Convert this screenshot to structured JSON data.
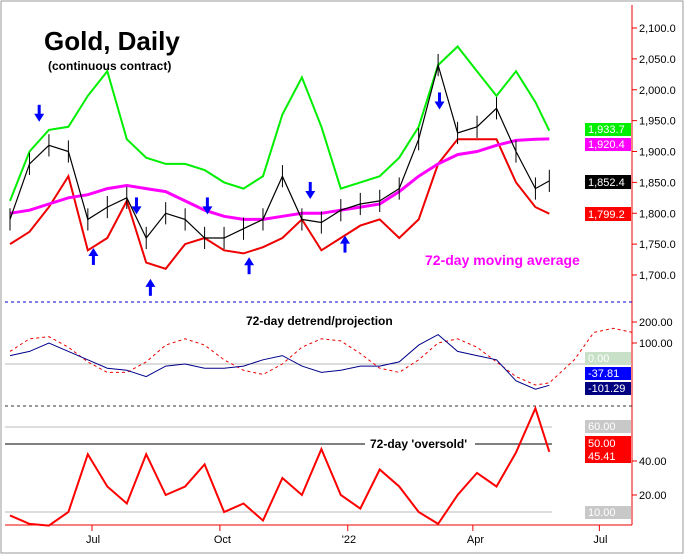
{
  "chart_data": {
    "type": "line",
    "title": "Gold, Daily",
    "subtitle": "(continuous contract)",
    "x_tick_labels": [
      "Jul",
      "Oct",
      "'22",
      "Apr",
      "Jul"
    ],
    "dates": [
      "2021-05-03",
      "2021-05-17",
      "2021-05-31",
      "2021-06-14",
      "2021-06-28",
      "2021-07-12",
      "2021-07-26",
      "2021-08-09",
      "2021-08-23",
      "2021-09-06",
      "2021-09-20",
      "2021-10-04",
      "2021-10-18",
      "2021-11-01",
      "2021-11-15",
      "2021-11-29",
      "2021-12-13",
      "2021-12-27",
      "2022-01-10",
      "2022-01-24",
      "2022-02-07",
      "2022-02-21",
      "2022-03-07",
      "2022-03-21",
      "2022-04-04",
      "2022-04-18",
      "2022-05-02",
      "2022-05-16",
      "2022-05-26"
    ],
    "price_panel": {
      "ylim": [
        1660,
        2130
      ],
      "y_ticks": [
        "1,700.0",
        "1,750.0",
        "1,800.0",
        "1,850.0",
        "1,900.0",
        "1,950.0",
        "2,000.0",
        "2,050.0",
        "2,100.0"
      ],
      "series": [
        {
          "name": "Gold price",
          "color": "#000000",
          "last_label": "1,852.4",
          "values": [
            1790,
            1880,
            1910,
            1900,
            1790,
            1810,
            1825,
            1760,
            1800,
            1790,
            1760,
            1760,
            1775,
            1790,
            1860,
            1790,
            1785,
            1805,
            1815,
            1820,
            1840,
            1920,
            2040,
            1930,
            1940,
            1970,
            1900,
            1840,
            1852.4
          ]
        },
        {
          "name": "Upper band",
          "color": "#00ee00",
          "last_label": "1,933.7",
          "values": [
            1820,
            1900,
            1935,
            1940,
            1990,
            2030,
            1920,
            1890,
            1880,
            1880,
            1870,
            1850,
            1840,
            1860,
            1960,
            2020,
            1940,
            1840,
            1850,
            1860,
            1890,
            1940,
            2040,
            2070,
            2030,
            1990,
            2030,
            1980,
            1933.7
          ]
        },
        {
          "name": "Lower band",
          "color": "#ee0000",
          "last_label": "1,799.2",
          "values": [
            1750,
            1770,
            1810,
            1860,
            1740,
            1760,
            1820,
            1720,
            1710,
            1750,
            1760,
            1740,
            1735,
            1745,
            1760,
            1790,
            1740,
            1760,
            1780,
            1790,
            1760,
            1790,
            1880,
            1920,
            1920,
            1920,
            1850,
            1810,
            1799.2
          ]
        },
        {
          "name": "72-day moving average",
          "color": "#ff00ff",
          "last_label": "1,920.4",
          "values": [
            1800,
            1805,
            1815,
            1825,
            1830,
            1840,
            1845,
            1840,
            1835,
            1820,
            1805,
            1795,
            1790,
            1790,
            1795,
            1800,
            1800,
            1805,
            1810,
            1815,
            1835,
            1860,
            1880,
            1895,
            1900,
            1910,
            1918,
            1920,
            1920.4
          ]
        }
      ],
      "annotation": "72-day moving average",
      "down_arrows_dates": [
        "2021-05-24",
        "2021-08-02",
        "2021-09-22",
        "2021-12-05",
        "2022-03-08"
      ],
      "up_arrows_dates": [
        "2021-07-02",
        "2021-08-12",
        "2021-10-22",
        "2021-12-30"
      ]
    },
    "detrend_panel": {
      "title": "72-day detrend/projection",
      "y_ticks": [
        "100.00",
        "200.00"
      ],
      "zero_label": "0.00",
      "labels": [
        "-37.81",
        "-101.29"
      ],
      "detrend": [
        40,
        60,
        100,
        60,
        20,
        -20,
        -30,
        -60,
        -10,
        0,
        -20,
        -20,
        -10,
        20,
        40,
        -10,
        -40,
        -30,
        -10,
        -10,
        10,
        90,
        140,
        60,
        40,
        20,
        -80,
        -120,
        -101.29
      ],
      "projection_dates_extra": [
        "2022-06-13",
        "2022-06-27",
        "2022-07-11",
        "2022-07-25"
      ],
      "projection": [
        60,
        120,
        130,
        80,
        10,
        -40,
        -40,
        10,
        90,
        120,
        90,
        20,
        -30,
        -50,
        0,
        80,
        120,
        110,
        50,
        -20,
        -40,
        20,
        100,
        120,
        80,
        10,
        -60,
        -100,
        -90,
        20,
        150,
        170,
        150
      ]
    },
    "oscillator_panel": {
      "title": "72-day 'oversold'",
      "y_ticks": [
        "20.00",
        "40.00"
      ],
      "ref_labels": {
        "upper": "60.00",
        "oversold": "50.00",
        "lower": "10.00"
      },
      "last_label": "45.41",
      "values": [
        8,
        3,
        2,
        10,
        44,
        25,
        15,
        44,
        20,
        25,
        38,
        10,
        15,
        5,
        30,
        20,
        47,
        20,
        12,
        35,
        25,
        10,
        3,
        20,
        33,
        25,
        45,
        71,
        45.41
      ]
    }
  }
}
